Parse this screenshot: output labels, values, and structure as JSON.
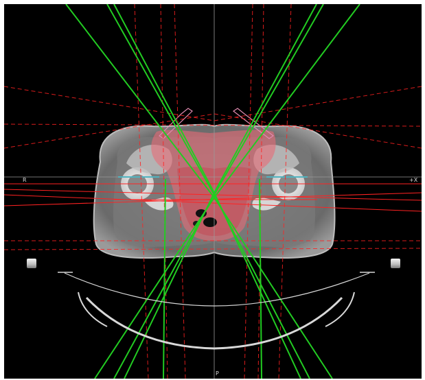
{
  "view": {
    "name": "axial-ct-beam-view",
    "orientation_labels": {
      "left": "R",
      "right": "+X",
      "bottom": "P"
    }
  },
  "colors": {
    "background": "#000000",
    "beam_green": "#22cc22",
    "dose_red": "#ff2222",
    "ptv_fill": "#e86a76",
    "crosshair": "#9a9a9a",
    "femur_line": "#25c3d8",
    "couch": "#d8d8d8",
    "ct_body": "#6d6d6d"
  }
}
